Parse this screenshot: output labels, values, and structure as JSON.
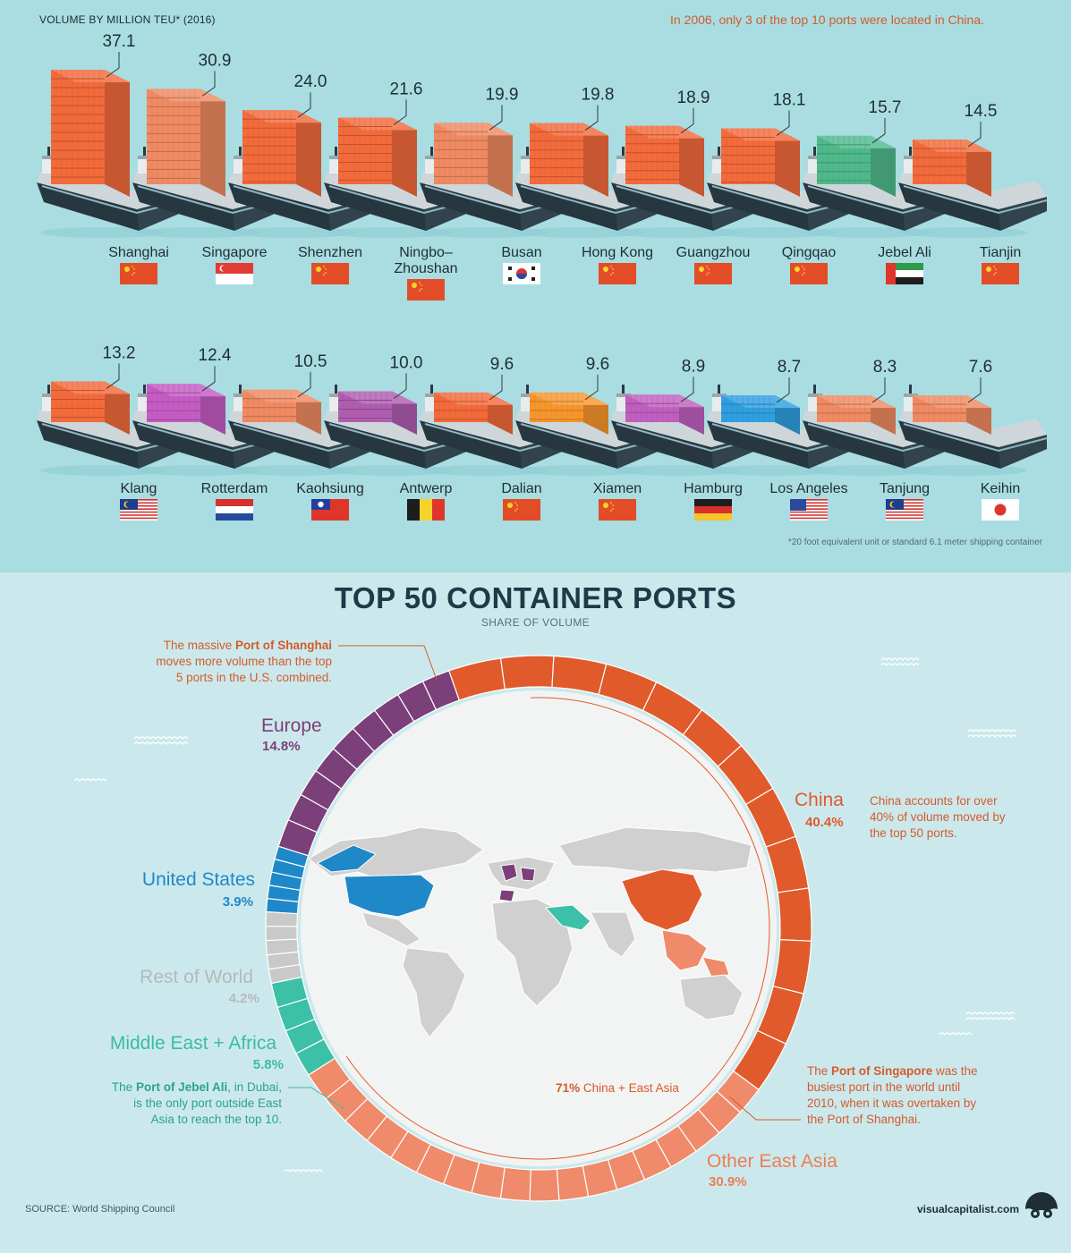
{
  "header": {
    "volume_label": "VOLUME BY MILLION TEU* (2016)",
    "note_2006": "In 2006, only 3 of the top 10 ports were located in China.",
    "footnote": "*20 foot equivalent unit or standard 6.1 meter shipping container"
  },
  "chart_data": [
    {
      "type": "bar",
      "title": "",
      "ylabel": "VOLUME BY MILLION TEU* (2016)",
      "categories": [
        "Shanghai",
        "Singapore",
        "Shenzhen",
        "Ningbo-Zhoushan",
        "Busan",
        "Hong Kong",
        "Guangzhou",
        "Qingqao",
        "Jebel Ali",
        "Tianjin",
        "Klang",
        "Rotterdam",
        "Kaohsiung",
        "Antwerp",
        "Dalian",
        "Xiamen",
        "Hamburg",
        "Los Angeles",
        "Tanjung",
        "Keihin"
      ],
      "values": [
        37.1,
        30.9,
        24.0,
        21.6,
        19.9,
        19.8,
        18.9,
        18.1,
        15.7,
        14.5,
        13.2,
        12.4,
        10.5,
        10.0,
        9.6,
        9.6,
        8.9,
        8.7,
        8.3,
        7.6
      ],
      "value_labels": [
        "37.1",
        "30.9",
        "24.0",
        "21.6",
        "19.9",
        "19.8",
        "18.9",
        "18.1",
        "15.7",
        "14.5",
        "13.2",
        "12.4",
        "10.5",
        "10.0",
        "9.6",
        "9.6",
        "8.9",
        "8.7",
        "8.3",
        "7.6"
      ],
      "display_names": [
        [
          "Shanghai"
        ],
        [
          "Singapore"
        ],
        [
          "Shenzhen"
        ],
        [
          "Ningbo–",
          "Zhoushan"
        ],
        [
          "Busan"
        ],
        [
          "Hong Kong"
        ],
        [
          "Guangzhou"
        ],
        [
          "Qingqao"
        ],
        [
          "Jebel Ali"
        ],
        [
          "Tianjin"
        ],
        [
          "Klang"
        ],
        [
          "Rotterdam"
        ],
        [
          "Kaohsiung"
        ],
        [
          "Antwerp"
        ],
        [
          "Dalian"
        ],
        [
          "Xiamen"
        ],
        [
          "Hamburg"
        ],
        [
          "Los Angeles"
        ],
        [
          "Tanjung"
        ],
        [
          "Keihin"
        ]
      ],
      "countries": [
        "china",
        "singapore",
        "china",
        "china",
        "korea",
        "china",
        "china",
        "china",
        "uae",
        "china",
        "malaysia",
        "netherlands",
        "taiwan",
        "belgium",
        "china",
        "china",
        "germany",
        "usa",
        "malaysia",
        "japan"
      ],
      "container_colors": [
        "#f36a3b",
        "#ef8a62",
        "#f36a3b",
        "#f36a3b",
        "#ef8a62",
        "#f36a3b",
        "#f36a3b",
        "#f36a3b",
        "#4fb98c",
        "#f36a3b",
        "#f36a3b",
        "#c45cc3",
        "#ef8a62",
        "#b05db0",
        "#f36a3b",
        "#f7962c",
        "#c05fbf",
        "#2f9fe0",
        "#ef8a62",
        "#ef8a62"
      ]
    },
    {
      "type": "pie",
      "title": "TOP 50 CONTAINER PORTS",
      "subtitle": "SHARE OF VOLUME",
      "categories": [
        "China",
        "Other East Asia",
        "Middle East + Africa",
        "Rest of World",
        "United States",
        "Europe"
      ],
      "values": [
        40.4,
        30.9,
        5.8,
        4.2,
        3.9,
        14.8
      ],
      "value_labels": [
        "40.4%",
        "30.9%",
        "5.8%",
        "4.2%",
        "3.9%",
        "14.8%"
      ],
      "colors": [
        "#e05a2b",
        "#ef8a6a",
        "#3cc0a8",
        "#c9c9c9",
        "#1f88c9",
        "#7b3f7a"
      ]
    }
  ],
  "annotations": {
    "shanghai_pre": "The massive ",
    "shanghai_bold": "Port of Shanghai",
    "shanghai_line1_rest": "",
    "shanghai_line2": "moves more volume than the top",
    "shanghai_line3": "5 ports in the U.S. combined.",
    "china_line1": "China accounts for over",
    "china_line2": "40% of volume moved by",
    "china_line3": "the top 50 ports.",
    "jebel_pre": "The ",
    "jebel_bold": "Port of Jebel Ali",
    "jebel_post": ", in Dubai,",
    "jebel_line2": "is the only port outside East",
    "jebel_line3": "Asia to reach the top 10.",
    "singapore_pre": "The ",
    "singapore_bold": "Port of Singapore",
    "singapore_post": " was the",
    "singapore_line2": "busiest port in the world until",
    "singapore_line3": "2010, when it was overtaken by",
    "singapore_line4": "the Port of Shanghai.",
    "center_bold": "71%",
    "center_rest": " China + East Asia"
  },
  "footer": {
    "source": "SOURCE: World Shipping Council",
    "brand": "visualcapitalist.com"
  }
}
